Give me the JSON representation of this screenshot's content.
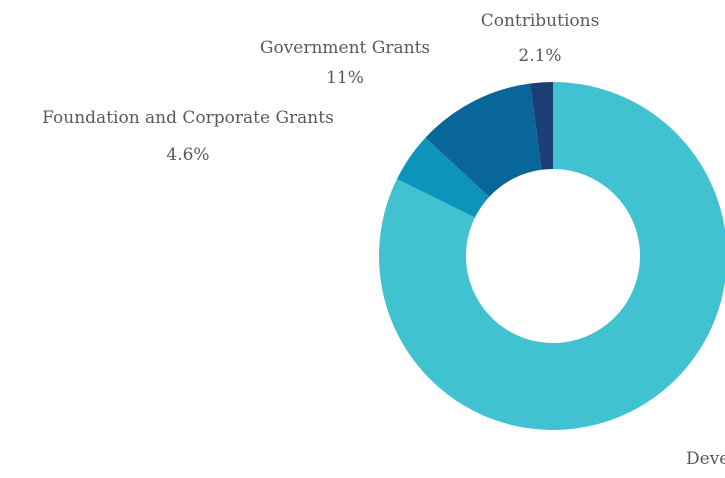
{
  "chart_data": {
    "type": "pie",
    "variant": "donut",
    "title": "",
    "slices": [
      {
        "label": "Deve",
        "value_label": "",
        "value": 82.3,
        "color": "#40C2D0"
      },
      {
        "label": "Foundation and Corporate Grants",
        "value_label": "4.6%",
        "value": 4.6,
        "color": "#0E93BA"
      },
      {
        "label": "Government Grants",
        "value_label": "11%",
        "value": 11.0,
        "color": "#09669A"
      },
      {
        "label": "Contributions",
        "value_label": "2.1%",
        "value": 2.1,
        "color": "#1C3F75"
      }
    ],
    "start_angle": "12 o'clock",
    "direction": "clockwise",
    "legend": "none"
  }
}
